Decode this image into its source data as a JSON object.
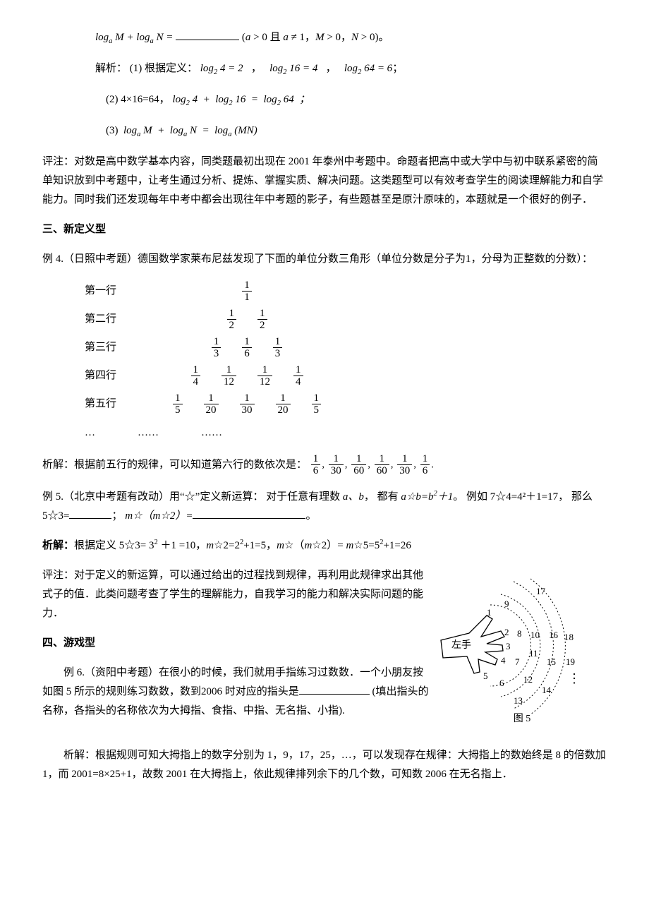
{
  "eq_header": {
    "lhs": "log<sub>a</sub> M + log<sub>a</sub> N =",
    "rhs_cond": "(a > 0 且 a ≠ 1，M > 0，N > 0)",
    "period": "。"
  },
  "solution1": {
    "label": "解析：",
    "p1": "(1) 根据定义：",
    "e1a": "log<sub>2</sub> 4 = 2",
    "e1b": "log<sub>2</sub> 16 = 4",
    "e1c": "log<sub>2</sub> 64 = 6",
    "sep": "，",
    "semi": "；",
    "p2": "(2)  4×16=64，",
    "e2": "log<sub>2</sub> 4  +  log<sub>2</sub> 16  =  log<sub>2</sub> 64  ；",
    "p3": "(3)",
    "e3": "log<sub>a</sub> M  +  log<sub>a</sub> N  =  log<sub>a</sub> (MN)"
  },
  "comment1": "评注：对数是高中数学基本内容，同类题最初出现在 2001 年泰州中考题中。命题者把高中或大学中与初中联系紧密的简单知识放到中考题中，让考生通过分析、提炼、掌握实质、解决问题。这类题型可以有效考查学生的阅读理解能力和自学能力。同时我们还发现每年中考中都会出现往年中考题的影子，有些题甚至是原汁原味的，本题就是一个很好的例子．",
  "section3": "三、新定义型",
  "ex4_intro": "例 4.（日照中考题）德国数学家莱布尼兹发现了下面的单位分数三角形（单位分数是分子为1，分母为正整数的分数）：",
  "triangle": {
    "rows": [
      {
        "label": "第一行",
        "cells": [
          [
            "1",
            "1"
          ]
        ]
      },
      {
        "label": "第二行",
        "cells": [
          [
            "1",
            "2"
          ],
          [
            "1",
            "2"
          ]
        ]
      },
      {
        "label": "第三行",
        "cells": [
          [
            "1",
            "3"
          ],
          [
            "1",
            "6"
          ],
          [
            "1",
            "3"
          ]
        ]
      },
      {
        "label": "第四行",
        "cells": [
          [
            "1",
            "4"
          ],
          [
            "1",
            "12"
          ],
          [
            "1",
            "12"
          ],
          [
            "1",
            "4"
          ]
        ]
      },
      {
        "label": "第五行",
        "cells": [
          [
            "1",
            "5"
          ],
          [
            "1",
            "20"
          ],
          [
            "1",
            "30"
          ],
          [
            "1",
            "20"
          ],
          [
            "1",
            "5"
          ]
        ]
      }
    ],
    "dots": [
      "…",
      "……",
      "……"
    ]
  },
  "ex4_sol_label": "析解：根据前五行的规律，可以知道第六行的数依次是：",
  "ex4_sol_fracs": [
    [
      "1",
      "6"
    ],
    [
      "1",
      "30"
    ],
    [
      "1",
      "60"
    ],
    [
      "1",
      "60"
    ],
    [
      "1",
      "30"
    ],
    [
      "1",
      "6"
    ]
  ],
  "ex4_sol_period": ".",
  "ex5_intro_a": "例 5.（北京中考题有改动）用“☆”定义新运算：  对于任意有理数 ",
  "ex5_ab": "a、b",
  "ex5_intro_b": "，   都有 ",
  "ex5_def": "a☆b=b²＋1",
  "ex5_intro_c": "。  例如 7☆4=4²＋1=17，  那么 5☆3=",
  "ex5_intro_d": "；   ",
  "ex5_m": "m☆（m☆2）=",
  "ex5_period": "。",
  "ex5_sol_label": "析解：",
  "ex5_sol": "根据定义 5☆3= 3² ＋1 =10，m☆2=2²+1=5，m☆（m☆2）= m☆5=5²+1=26",
  "comment2": "评注：对于定义的新运算，可以通过给出的过程找到规律，再利用此规律求出其他式子的值．此类问题考查了学生的理解能力，自我学习的能力和解决实际问题的能力．",
  "section4": "四、游戏型",
  "ex6_a": "例 6.（资阳中考题）在很小的时候，我们就用手指练习过数数．一个小朋友按如图 5 所示的规则练习数数，数到2006 时对应的指头是",
  "ex6_b": " (填出指头的名称，各指头的名称依次为大拇指、食指、中指、无名指、小指).",
  "fig5": {
    "caption": "图 5",
    "hand_label": "左手",
    "numbers": [
      "1",
      "2",
      "3",
      "4",
      "5",
      "6",
      "7",
      "8",
      "9",
      "10",
      "11",
      "12",
      "13",
      "14",
      "15",
      "16",
      "17",
      "18",
      "19"
    ]
  },
  "ex6_sol": "析解：根据规则可知大拇指上的数字分别为 1，9，17，25，…，可以发现存在规律：大拇指上的数始终是 8 的倍数加 1，而 2001=8×25+1，故数 2001 在大拇指上，依此规律排列余下的几个数，可知数 2006 在无名指上．",
  "colors": {
    "text": "#000000",
    "bg": "#ffffff"
  }
}
